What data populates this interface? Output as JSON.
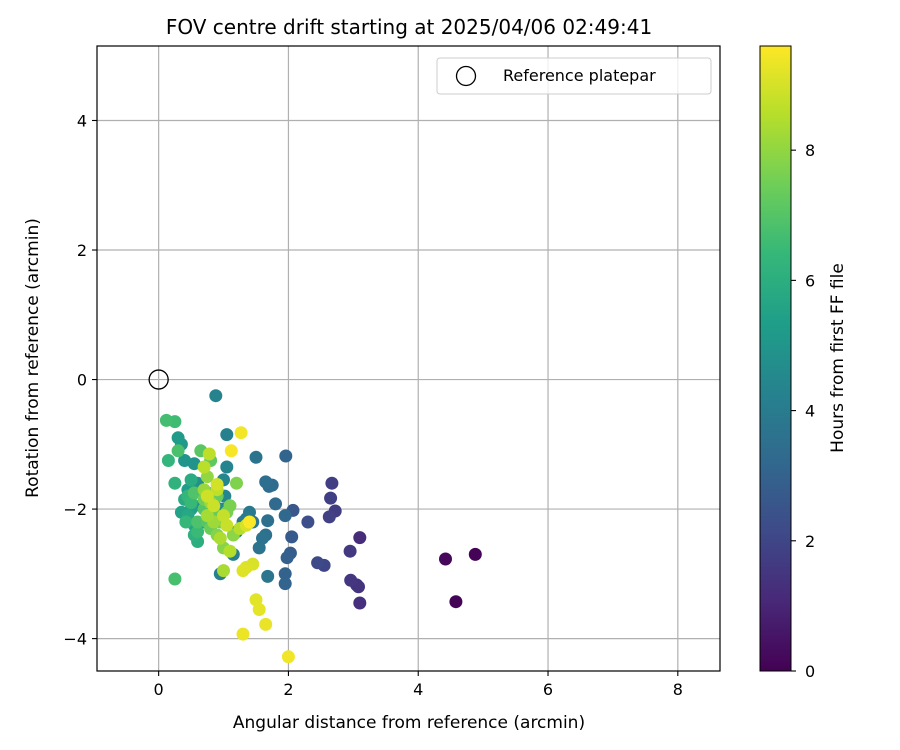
{
  "chart_data": {
    "type": "scatter",
    "title": "FOV centre drift starting at 2025/04/06 02:49:41",
    "xlabel": "Angular distance from reference (arcmin)",
    "ylabel": "Rotation from reference (arcmin)",
    "xlim": [
      -0.95,
      8.65
    ],
    "ylim": [
      -4.5,
      5.15
    ],
    "xticks": [
      0,
      2,
      4,
      6,
      8
    ],
    "yticks": [
      -4,
      -2,
      0,
      2,
      4
    ],
    "xtick_labels": [
      "0",
      "2",
      "4",
      "6",
      "8"
    ],
    "ytick_labels": [
      "−4",
      "−2",
      "0",
      "2",
      "4"
    ],
    "grid": true,
    "legend": {
      "position": "top-right",
      "entries": [
        "Reference platepar"
      ]
    },
    "reference_point": {
      "x": 0,
      "y": 0,
      "label": "Reference platepar",
      "marker": "open-circle"
    },
    "colorbar": {
      "label": "Hours from first FF file",
      "range": [
        0,
        9.6
      ],
      "ticks": [
        0,
        2,
        4,
        6,
        8
      ],
      "tick_labels": [
        "0",
        "2",
        "4",
        "6",
        "8"
      ],
      "colormap": "viridis"
    },
    "points": [
      [
        4.88,
        -2.7,
        0.05
      ],
      [
        4.58,
        -3.43,
        0.1
      ],
      [
        4.42,
        -2.77,
        0.2
      ],
      [
        3.1,
        -2.44,
        1.2
      ],
      [
        3.1,
        -3.45,
        1.3
      ],
      [
        3.08,
        -3.2,
        1.4
      ],
      [
        3.05,
        -3.17,
        1.45
      ],
      [
        2.96,
        -3.1,
        1.5
      ],
      [
        2.95,
        -2.65,
        1.6
      ],
      [
        2.72,
        -2.03,
        1.7
      ],
      [
        2.67,
        -1.6,
        1.75
      ],
      [
        2.65,
        -1.83,
        1.8
      ],
      [
        2.63,
        -2.12,
        1.85
      ],
      [
        2.55,
        -2.87,
        2.0
      ],
      [
        2.45,
        -2.83,
        2.1
      ],
      [
        2.3,
        -2.2,
        2.3
      ],
      [
        2.07,
        -2.02,
        2.6
      ],
      [
        2.05,
        -2.43,
        2.7
      ],
      [
        2.03,
        -2.68,
        2.8
      ],
      [
        1.98,
        -2.75,
        2.9
      ],
      [
        1.95,
        -3.0,
        3.0
      ],
      [
        1.95,
        -3.15,
        3.05
      ],
      [
        1.96,
        -1.18,
        3.1
      ],
      [
        1.95,
        -2.1,
        3.2
      ],
      [
        1.8,
        -1.92,
        3.3
      ],
      [
        1.75,
        -1.63,
        3.35
      ],
      [
        1.7,
        -1.65,
        3.4
      ],
      [
        1.65,
        -1.58,
        3.45
      ],
      [
        1.68,
        -2.18,
        3.5
      ],
      [
        1.65,
        -2.4,
        3.55
      ],
      [
        1.6,
        -2.45,
        3.6
      ],
      [
        1.55,
        -2.6,
        3.65
      ],
      [
        1.5,
        -1.2,
        3.7
      ],
      [
        1.68,
        -3.04,
        3.75
      ],
      [
        1.45,
        -2.2,
        3.8
      ],
      [
        1.4,
        -2.05,
        3.85
      ],
      [
        1.35,
        -2.15,
        3.9
      ],
      [
        1.3,
        -2.2,
        3.95
      ],
      [
        1.2,
        -2.35,
        4.0
      ],
      [
        1.15,
        -2.7,
        4.1
      ],
      [
        0.95,
        -3.0,
        4.15
      ],
      [
        1.05,
        -0.85,
        4.2
      ],
      [
        0.88,
        -0.25,
        4.3
      ],
      [
        1.05,
        -1.35,
        4.35
      ],
      [
        1.0,
        -1.55,
        4.4
      ],
      [
        1.02,
        -1.8,
        4.45
      ],
      [
        0.98,
        -2.0,
        4.5
      ],
      [
        0.9,
        -2.15,
        4.55
      ],
      [
        0.85,
        -1.9,
        4.6
      ],
      [
        0.8,
        -2.05,
        4.65
      ],
      [
        0.75,
        -1.75,
        4.7
      ],
      [
        0.7,
        -2.2,
        4.75
      ],
      [
        0.65,
        -1.95,
        4.8
      ],
      [
        0.6,
        -1.6,
        4.85
      ],
      [
        0.55,
        -1.3,
        4.9
      ],
      [
        0.4,
        -1.25,
        5.0
      ],
      [
        0.35,
        -1.0,
        5.1
      ],
      [
        0.3,
        -0.9,
        5.2
      ],
      [
        0.45,
        -1.7,
        5.3
      ],
      [
        0.5,
        -2.0,
        5.4
      ],
      [
        0.35,
        -2.05,
        5.5
      ],
      [
        0.55,
        -2.25,
        5.6
      ],
      [
        0.45,
        -2.1,
        5.7
      ],
      [
        0.4,
        -1.85,
        5.8
      ],
      [
        0.5,
        -1.55,
        5.9
      ],
      [
        0.6,
        -2.5,
        6.0
      ],
      [
        0.55,
        -2.4,
        6.1
      ],
      [
        0.25,
        -1.6,
        6.2
      ],
      [
        0.15,
        -1.25,
        6.3
      ],
      [
        0.45,
        -1.8,
        6.35
      ],
      [
        0.42,
        -2.2,
        6.4
      ],
      [
        0.5,
        -1.9,
        6.45
      ],
      [
        0.6,
        -2.35,
        6.5
      ],
      [
        0.25,
        -0.65,
        6.6
      ],
      [
        0.12,
        -0.63,
        6.7
      ],
      [
        0.25,
        -3.08,
        6.75
      ],
      [
        0.3,
        -1.1,
        6.8
      ],
      [
        0.6,
        -2.2,
        6.85
      ],
      [
        0.55,
        -1.75,
        6.9
      ],
      [
        0.7,
        -2.0,
        7.0
      ],
      [
        0.75,
        -2.2,
        7.05
      ],
      [
        0.65,
        -1.1,
        7.1
      ],
      [
        0.8,
        -1.25,
        7.2
      ],
      [
        0.85,
        -2.05,
        7.3
      ],
      [
        0.9,
        -1.8,
        7.35
      ],
      [
        0.8,
        -2.3,
        7.4
      ],
      [
        0.7,
        -1.85,
        7.45
      ],
      [
        0.95,
        -2.2,
        7.5
      ],
      [
        1.05,
        -2.05,
        7.6
      ],
      [
        1.1,
        -1.95,
        7.65
      ],
      [
        1.2,
        -1.6,
        7.7
      ],
      [
        0.9,
        -2.4,
        7.8
      ],
      [
        1.0,
        -2.6,
        7.85
      ],
      [
        1.15,
        -2.4,
        7.9
      ],
      [
        0.75,
        -1.5,
        8.0
      ],
      [
        0.7,
        -1.7,
        8.1
      ],
      [
        0.8,
        -1.9,
        8.15
      ],
      [
        0.85,
        -2.2,
        8.2
      ],
      [
        0.75,
        -2.1,
        8.3
      ],
      [
        1.0,
        -2.95,
        8.35
      ],
      [
        0.95,
        -2.45,
        8.4
      ],
      [
        1.1,
        -2.65,
        8.5
      ],
      [
        1.25,
        -2.3,
        8.55
      ],
      [
        0.7,
        -1.35,
        8.6
      ],
      [
        0.78,
        -1.15,
        8.65
      ],
      [
        0.9,
        -1.7,
        8.7
      ],
      [
        1.0,
        -2.1,
        8.75
      ],
      [
        1.05,
        -2.25,
        8.8
      ],
      [
        0.85,
        -1.95,
        8.85
      ],
      [
        0.75,
        -1.8,
        8.9
      ],
      [
        0.9,
        -1.62,
        8.95
      ],
      [
        1.35,
        -2.25,
        9.0
      ],
      [
        1.45,
        -2.85,
        9.05
      ],
      [
        1.35,
        -2.9,
        9.1
      ],
      [
        1.3,
        -2.95,
        9.15
      ],
      [
        1.5,
        -3.4,
        9.2
      ],
      [
        1.55,
        -3.55,
        9.25
      ],
      [
        1.65,
        -3.78,
        9.3
      ],
      [
        1.3,
        -3.93,
        9.35
      ],
      [
        2.0,
        -4.28,
        9.4
      ],
      [
        1.27,
        -0.82,
        9.45
      ],
      [
        1.12,
        -1.1,
        9.5
      ],
      [
        1.4,
        -2.2,
        9.55
      ]
    ]
  }
}
